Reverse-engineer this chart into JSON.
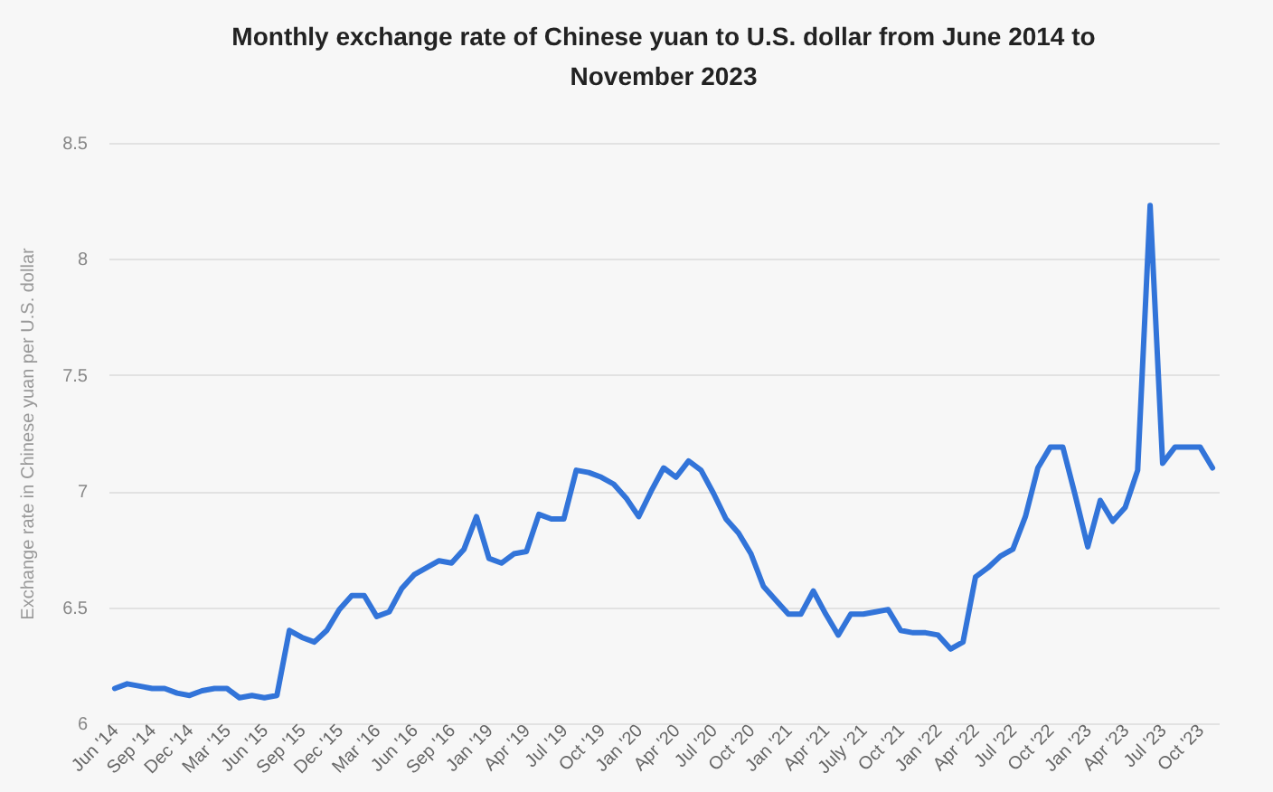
{
  "chart_data": {
    "type": "line",
    "title": "Monthly exchange rate of Chinese yuan to U.S. dollar from June 2014 to November 2023",
    "ylabel": "Exchange rate in Chinese yuan per U.S. dollar",
    "categories": [
      "Jun '14",
      null,
      null,
      "Sep '14",
      null,
      null,
      "Dec '14",
      null,
      null,
      "Mar '15",
      null,
      null,
      "Jun '15",
      null,
      null,
      "Sep '15",
      null,
      null,
      "Dec '15",
      null,
      null,
      "Mar '16",
      null,
      null,
      "Jun '16",
      null,
      null,
      "Sep '16",
      null,
      null,
      "Jan '19",
      null,
      null,
      "Apr '19",
      null,
      null,
      "Jul '19",
      null,
      null,
      "Oct '19",
      null,
      null,
      "Jan '20",
      null,
      null,
      "Apr '20",
      null,
      null,
      "Jul '20",
      null,
      null,
      "Oct '20",
      null,
      null,
      "Jan '21",
      null,
      null,
      "Apr '21",
      null,
      null,
      "July '21",
      null,
      null,
      "Oct '21",
      null,
      null,
      "Jan '22",
      null,
      null,
      "Apr '22",
      null,
      null,
      "Jul '22",
      null,
      null,
      "Oct '22",
      null,
      null,
      "Jan '23",
      null,
      null,
      "Apr '23",
      null,
      null,
      "Jul '23",
      null,
      null,
      "Oct '23",
      null
    ],
    "series": [
      {
        "color": "#3274d9",
        "values": [
          6.15,
          6.17,
          6.16,
          6.15,
          6.15,
          6.13,
          6.12,
          6.14,
          6.15,
          6.15,
          6.11,
          6.12,
          6.11,
          6.12,
          6.4,
          6.37,
          6.35,
          6.4,
          6.49,
          6.55,
          6.55,
          6.46,
          6.48,
          6.58,
          6.64,
          6.67,
          6.7,
          6.69,
          6.75,
          6.89,
          6.71,
          6.69,
          6.73,
          6.74,
          6.9,
          6.88,
          6.88,
          7.09,
          7.08,
          7.06,
          7.03,
          6.97,
          6.89,
          7.0,
          7.1,
          7.06,
          7.13,
          7.09,
          6.99,
          6.88,
          6.82,
          6.73,
          6.59,
          6.53,
          6.47,
          6.47,
          6.57,
          6.47,
          6.38,
          6.47,
          6.47,
          6.48,
          6.49,
          6.4,
          6.39,
          6.39,
          6.38,
          6.32,
          6.35,
          6.63,
          6.67,
          6.72,
          6.75,
          6.89,
          7.1,
          7.19,
          7.19,
          6.98,
          6.76,
          6.96,
          6.87,
          6.93,
          7.09,
          8.23,
          7.12,
          7.19,
          7.19,
          7.19,
          7.1
        ]
      }
    ],
    "ylim": [
      6,
      8.5
    ],
    "yticks": [
      6,
      6.5,
      7,
      7.5,
      8,
      8.5
    ],
    "grid": "y",
    "marker": "none",
    "line_style": "solid"
  }
}
